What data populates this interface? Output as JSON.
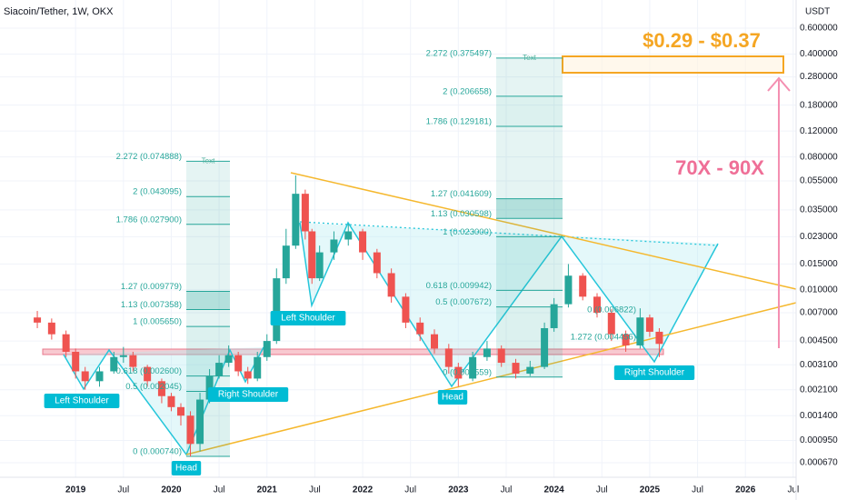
{
  "chart_data": {
    "type": "candlestick",
    "title": "Siacoin/Tether, 1W, OKX",
    "y_axis_label": "USDT",
    "log_scale": true,
    "up_color": "#26a69a",
    "down_color": "#ef5350",
    "x": [
      2018.6,
      2018.75,
      2018.9,
      2019.0,
      2019.1,
      2019.25,
      2019.4,
      2019.5,
      2019.6,
      2019.75,
      2019.9,
      2020.0,
      2020.1,
      2020.2,
      2020.3,
      2020.4,
      2020.5,
      2020.6,
      2020.7,
      2020.8,
      2020.9,
      2021.0,
      2021.1,
      2021.2,
      2021.3,
      2021.4,
      2021.47,
      2021.55,
      2021.7,
      2021.85,
      2022.0,
      2022.15,
      2022.3,
      2022.45,
      2022.6,
      2022.75,
      2022.9,
      2023.0,
      2023.15,
      2023.3,
      2023.45,
      2023.6,
      2023.75,
      2023.9,
      2024.0,
      2024.15,
      2024.3,
      2024.45,
      2024.6,
      2024.75,
      2024.9,
      2025.0,
      2025.1
    ],
    "open": [
      0.0065,
      0.006,
      0.005,
      0.0038,
      0.0028,
      0.0024,
      0.0028,
      0.0035,
      0.0036,
      0.003,
      0.0024,
      0.0019,
      0.0016,
      0.0014,
      0.0009,
      0.0018,
      0.0026,
      0.0032,
      0.0036,
      0.0028,
      0.0025,
      0.0035,
      0.0045,
      0.012,
      0.02,
      0.045,
      0.025,
      0.012,
      0.018,
      0.022,
      0.025,
      0.018,
      0.013,
      0.009,
      0.006,
      0.005,
      0.004,
      0.003,
      0.0025,
      0.0035,
      0.004,
      0.0032,
      0.0027,
      0.003,
      0.0055,
      0.008,
      0.0125,
      0.009,
      0.007,
      0.005,
      0.0042,
      0.0065,
      0.0052
    ],
    "high": [
      0.0072,
      0.0064,
      0.0053,
      0.004,
      0.003,
      0.003,
      0.0038,
      0.0041,
      0.0038,
      0.0031,
      0.0025,
      0.002,
      0.0017,
      0.0015,
      0.002,
      0.0029,
      0.0036,
      0.0042,
      0.0038,
      0.003,
      0.0038,
      0.005,
      0.014,
      0.026,
      0.06,
      0.048,
      0.026,
      0.02,
      0.025,
      0.028,
      0.026,
      0.019,
      0.014,
      0.0095,
      0.0065,
      0.0054,
      0.0043,
      0.0032,
      0.0038,
      0.0045,
      0.0042,
      0.0034,
      0.0033,
      0.006,
      0.0088,
      0.015,
      0.013,
      0.0095,
      0.0074,
      0.0053,
      0.0075,
      0.0068,
      0.0055
    ],
    "low": [
      0.0055,
      0.0046,
      0.0035,
      0.0025,
      0.0021,
      0.0022,
      0.0027,
      0.0032,
      0.0028,
      0.0022,
      0.0017,
      0.0015,
      0.0012,
      0.00074,
      0.0008,
      0.0017,
      0.0025,
      0.003,
      0.0026,
      0.0023,
      0.0024,
      0.0033,
      0.0043,
      0.011,
      0.019,
      0.022,
      0.011,
      0.0115,
      0.016,
      0.02,
      0.016,
      0.012,
      0.0082,
      0.0055,
      0.0045,
      0.0037,
      0.0027,
      0.0022,
      0.0024,
      0.0033,
      0.003,
      0.0025,
      0.0026,
      0.0029,
      0.0052,
      0.0076,
      0.0085,
      0.0065,
      0.0045,
      0.0038,
      0.004,
      0.0048,
      0.0035
    ],
    "close": [
      0.006,
      0.005,
      0.0038,
      0.0028,
      0.0024,
      0.0028,
      0.0035,
      0.0036,
      0.003,
      0.0024,
      0.0019,
      0.0016,
      0.0014,
      0.0009,
      0.0018,
      0.0026,
      0.0032,
      0.0036,
      0.0028,
      0.0025,
      0.0035,
      0.0045,
      0.012,
      0.02,
      0.045,
      0.025,
      0.012,
      0.018,
      0.022,
      0.025,
      0.018,
      0.013,
      0.009,
      0.006,
      0.005,
      0.004,
      0.003,
      0.0025,
      0.0035,
      0.004,
      0.0032,
      0.0027,
      0.003,
      0.0055,
      0.008,
      0.0125,
      0.009,
      0.007,
      0.005,
      0.0042,
      0.0065,
      0.0052,
      0.0043
    ],
    "ylim": [
      0.000534,
      0.932
    ],
    "yticks": [
      {
        "value": 0.6,
        "label": "0.600000"
      },
      {
        "value": 0.4,
        "label": "0.400000"
      },
      {
        "value": 0.28,
        "label": "0.280000"
      },
      {
        "value": 0.18,
        "label": "0.180000"
      },
      {
        "value": 0.12,
        "label": "0.120000"
      },
      {
        "value": 0.08,
        "label": "0.080000"
      },
      {
        "value": 0.055,
        "label": "0.055000"
      },
      {
        "value": 0.035,
        "label": "0.035000"
      },
      {
        "value": 0.023,
        "label": "0.023000"
      },
      {
        "value": 0.015,
        "label": "0.015000"
      },
      {
        "value": 0.01,
        "label": "0.010000"
      },
      {
        "value": 0.007,
        "label": "0.007000"
      },
      {
        "value": 0.0045,
        "label": "0.004500"
      },
      {
        "value": 0.0031,
        "label": "0.003100"
      },
      {
        "value": 0.0021,
        "label": "0.002100"
      },
      {
        "value": 0.0014,
        "label": "0.001400"
      },
      {
        "value": 0.00095,
        "label": "0.000950"
      },
      {
        "value": 0.00067,
        "label": "0.000670"
      }
    ],
    "xlim": [
      2018.21,
      2026.53
    ],
    "xticks": [
      {
        "value": 2019,
        "label": "2019"
      },
      {
        "value": 2019.5,
        "label": "Jul"
      },
      {
        "value": 2020,
        "label": "2020"
      },
      {
        "value": 2020.5,
        "label": "Jul"
      },
      {
        "value": 2021,
        "label": "2021"
      },
      {
        "value": 2021.5,
        "label": "Jul"
      },
      {
        "value": 2022,
        "label": "2022"
      },
      {
        "value": 2022.5,
        "label": "Jul"
      },
      {
        "value": 2023,
        "label": "2023"
      },
      {
        "value": 2023.5,
        "label": "Jul"
      },
      {
        "value": 2024,
        "label": "2024"
      },
      {
        "value": 2024.5,
        "label": "Jul"
      },
      {
        "value": 2025,
        "label": "2025"
      },
      {
        "value": 2025.5,
        "label": "Jul"
      },
      {
        "value": 2026,
        "label": "2026"
      },
      {
        "value": 2026.5,
        "label": "Jul"
      }
    ],
    "annotations": {
      "target": "$0.29 - $0.37",
      "multiple": "70X - 90X",
      "patterns": [
        {
          "left": "Left Shoulder",
          "head": "Head",
          "right": "Right Shoulder"
        },
        {
          "left": "Left Shoulder",
          "head": "Head",
          "right": "Right Shoulder"
        }
      ],
      "fibs": [
        {
          "tag": "Text",
          "levels": [
            {
              "price": 0.074888,
              "label": "2.272 (0.074888)"
            },
            {
              "price": 0.043095,
              "label": "2 (0.043095)"
            },
            {
              "price": 0.0279,
              "label": "1.786 (0.027900)"
            },
            {
              "price": 0.009779,
              "label": "1.27 (0.009779)"
            },
            {
              "price": 0.007358,
              "label": "1.13 (0.007358)"
            },
            {
              "price": 0.00565,
              "label": "1 (0.005650)"
            },
            {
              "price": 0.0026,
              "label": "0.618 (0.002600)"
            },
            {
              "price": 0.002045,
              "label": "0.5 (0.002045)"
            },
            {
              "price": 0.00074,
              "label": "0 (0.000740)"
            }
          ]
        },
        {
          "tag": "Text",
          "levels": [
            {
              "price": 0.375497,
              "label": "2.272 (0.375497)"
            },
            {
              "price": 0.206658,
              "label": "2 (0.206658)"
            },
            {
              "price": 0.129181,
              "label": "1.786 (0.129181)"
            },
            {
              "price": 0.041609,
              "label": "1.27 (0.041609)"
            },
            {
              "price": 0.030598,
              "label": "1.13 (0.030598)"
            },
            {
              "price": 0.023,
              "label": "1 (0.023000)"
            },
            {
              "price": 0.009942,
              "label": "0.618 (0.009942)"
            },
            {
              "price": 0.007672,
              "label": "0.5 (0.007672)"
            },
            {
              "price": 0.002559,
              "label": "0 (0.002559)"
            }
          ]
        },
        {
          "levels": [
            {
              "price": 0.006822,
              "label": "0 (0.006822)"
            },
            {
              "price": 0.004456,
              "label": "1.272 (0.004456)"
            }
          ]
        }
      ]
    }
  }
}
